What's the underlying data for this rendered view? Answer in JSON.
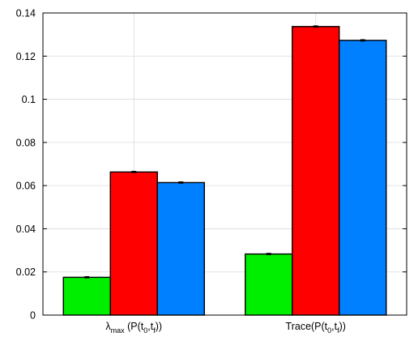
{
  "chart_data": {
    "type": "bar",
    "categories": [
      {
        "main": "λ",
        "sub1": "max",
        "rest": " (P(t",
        "sub2": "0",
        "mid": ",t",
        "sub3": "f",
        "end": "))"
      },
      {
        "main": "Trace(P(t",
        "sub1": "",
        "rest": "",
        "sub2": "0",
        "mid": ",t",
        "sub3": "f",
        "end": "))"
      }
    ],
    "series": [
      {
        "color": "#00ee00",
        "values": [
          0.0175,
          0.0283
        ],
        "errors": [
          0.0003,
          0.0003
        ]
      },
      {
        "color": "#ff0000",
        "values": [
          0.0663,
          0.1337
        ],
        "errors": [
          0.0003,
          0.0003
        ]
      },
      {
        "color": "#0080ff",
        "values": [
          0.0614,
          0.1273
        ],
        "errors": [
          0.0003,
          0.0003
        ]
      }
    ],
    "ylim": [
      0,
      0.14
    ],
    "yticks": [
      "0",
      "0.02",
      "0.04",
      "0.06",
      "0.08",
      "0.1",
      "0.12",
      "0.14"
    ],
    "ytick_values": [
      0,
      0.02,
      0.04,
      0.06,
      0.08,
      0.1,
      0.12,
      0.14
    ],
    "grid": true,
    "legend": "none"
  }
}
